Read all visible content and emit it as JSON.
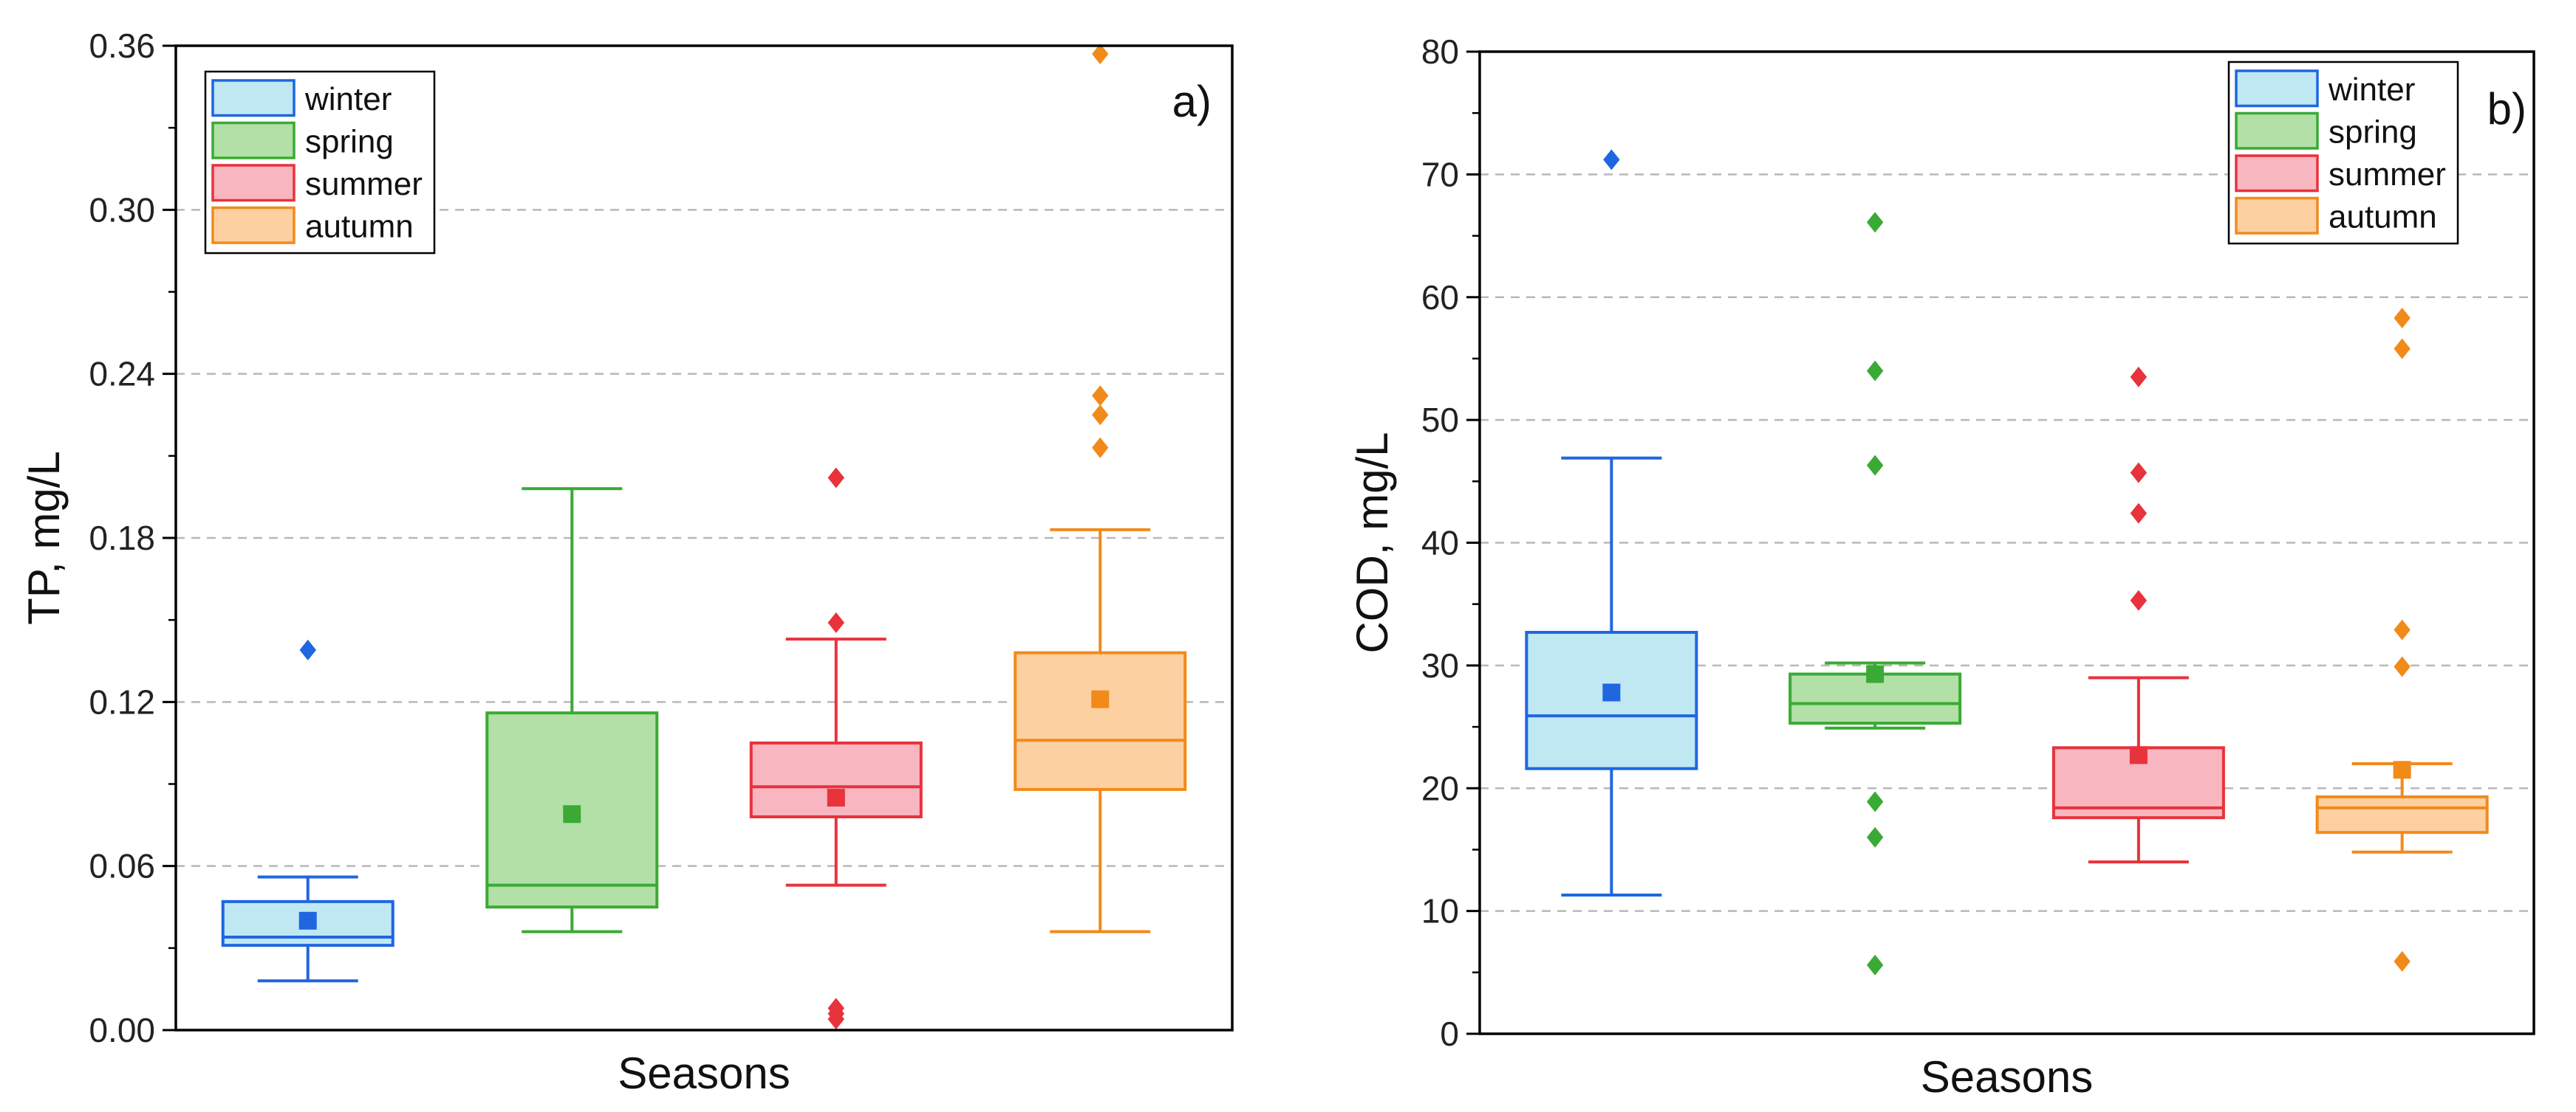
{
  "chart_data": [
    {
      "type": "box",
      "panel_label": "a)",
      "xlabel": "Seasons",
      "ylabel": "TP, mg/L",
      "ylim": [
        0,
        0.36
      ],
      "yticks": [
        "0.00",
        "0.06",
        "0.12",
        "0.18",
        "0.24",
        "0.30",
        "0.36"
      ],
      "grid": "horizontal-dashed",
      "legend_position": "top-left",
      "series": [
        {
          "name": "winter",
          "color": "#1f66e0",
          "fill": "#bfe8f3",
          "whisker_low": 0.018,
          "q1": 0.031,
          "median": 0.034,
          "q3": 0.047,
          "whisker_high": 0.056,
          "mean": 0.04,
          "outliers": [
            0.139
          ]
        },
        {
          "name": "spring",
          "color": "#3aaa35",
          "fill": "#b2e0a7",
          "whisker_low": 0.036,
          "q1": 0.045,
          "median": 0.053,
          "q3": 0.116,
          "whisker_high": 0.198,
          "mean": 0.079,
          "outliers": []
        },
        {
          "name": "summer",
          "color": "#e8323c",
          "fill": "#f8b6c0",
          "whisker_low": 0.053,
          "q1": 0.078,
          "median": 0.089,
          "q3": 0.105,
          "whisker_high": 0.143,
          "mean": 0.085,
          "outliers": [
            0.202,
            0.149,
            0.008,
            0.006,
            0.004
          ]
        },
        {
          "name": "autumn",
          "color": "#f28a1a",
          "fill": "#fdd0a2",
          "whisker_low": 0.036,
          "q1": 0.088,
          "median": 0.106,
          "q3": 0.138,
          "whisker_high": 0.183,
          "mean": 0.121,
          "outliers": [
            0.357,
            0.232,
            0.225,
            0.213
          ]
        }
      ]
    },
    {
      "type": "box",
      "panel_label": "b)",
      "xlabel": "Seasons",
      "ylabel": "COD, mg/L",
      "ylim": [
        0,
        80
      ],
      "yticks": [
        "0",
        "10",
        "20",
        "30",
        "40",
        "50",
        "60",
        "70",
        "80"
      ],
      "grid": "horizontal-dashed",
      "legend_position": "top-right",
      "series": [
        {
          "name": "winter",
          "color": "#1f66e0",
          "fill": "#bfe8f3",
          "whisker_low": 11.3,
          "q1": 21.6,
          "median": 25.9,
          "q3": 32.7,
          "whisker_high": 46.9,
          "mean": 27.8,
          "outliers": [
            71.2
          ]
        },
        {
          "name": "spring",
          "color": "#3aaa35",
          "fill": "#b2e0a7",
          "whisker_low": 24.9,
          "q1": 25.3,
          "median": 26.9,
          "q3": 29.3,
          "whisker_high": 30.2,
          "mean": 29.3,
          "outliers": [
            66.1,
            54.0,
            46.3,
            18.9,
            16.0,
            5.6
          ]
        },
        {
          "name": "summer",
          "color": "#e8323c",
          "fill": "#f8b6c0",
          "whisker_low": 14.0,
          "q1": 17.6,
          "median": 18.4,
          "q3": 23.3,
          "whisker_high": 29.0,
          "mean": 22.7,
          "outliers": [
            53.5,
            45.7,
            42.4,
            35.3
          ]
        },
        {
          "name": "autumn",
          "color": "#f28a1a",
          "fill": "#fdd0a2",
          "whisker_low": 14.8,
          "q1": 16.4,
          "median": 18.4,
          "q3": 19.3,
          "whisker_high": 22.0,
          "mean": 21.5,
          "outliers": [
            58.3,
            55.8,
            32.9,
            29.9,
            5.9
          ]
        }
      ]
    }
  ]
}
